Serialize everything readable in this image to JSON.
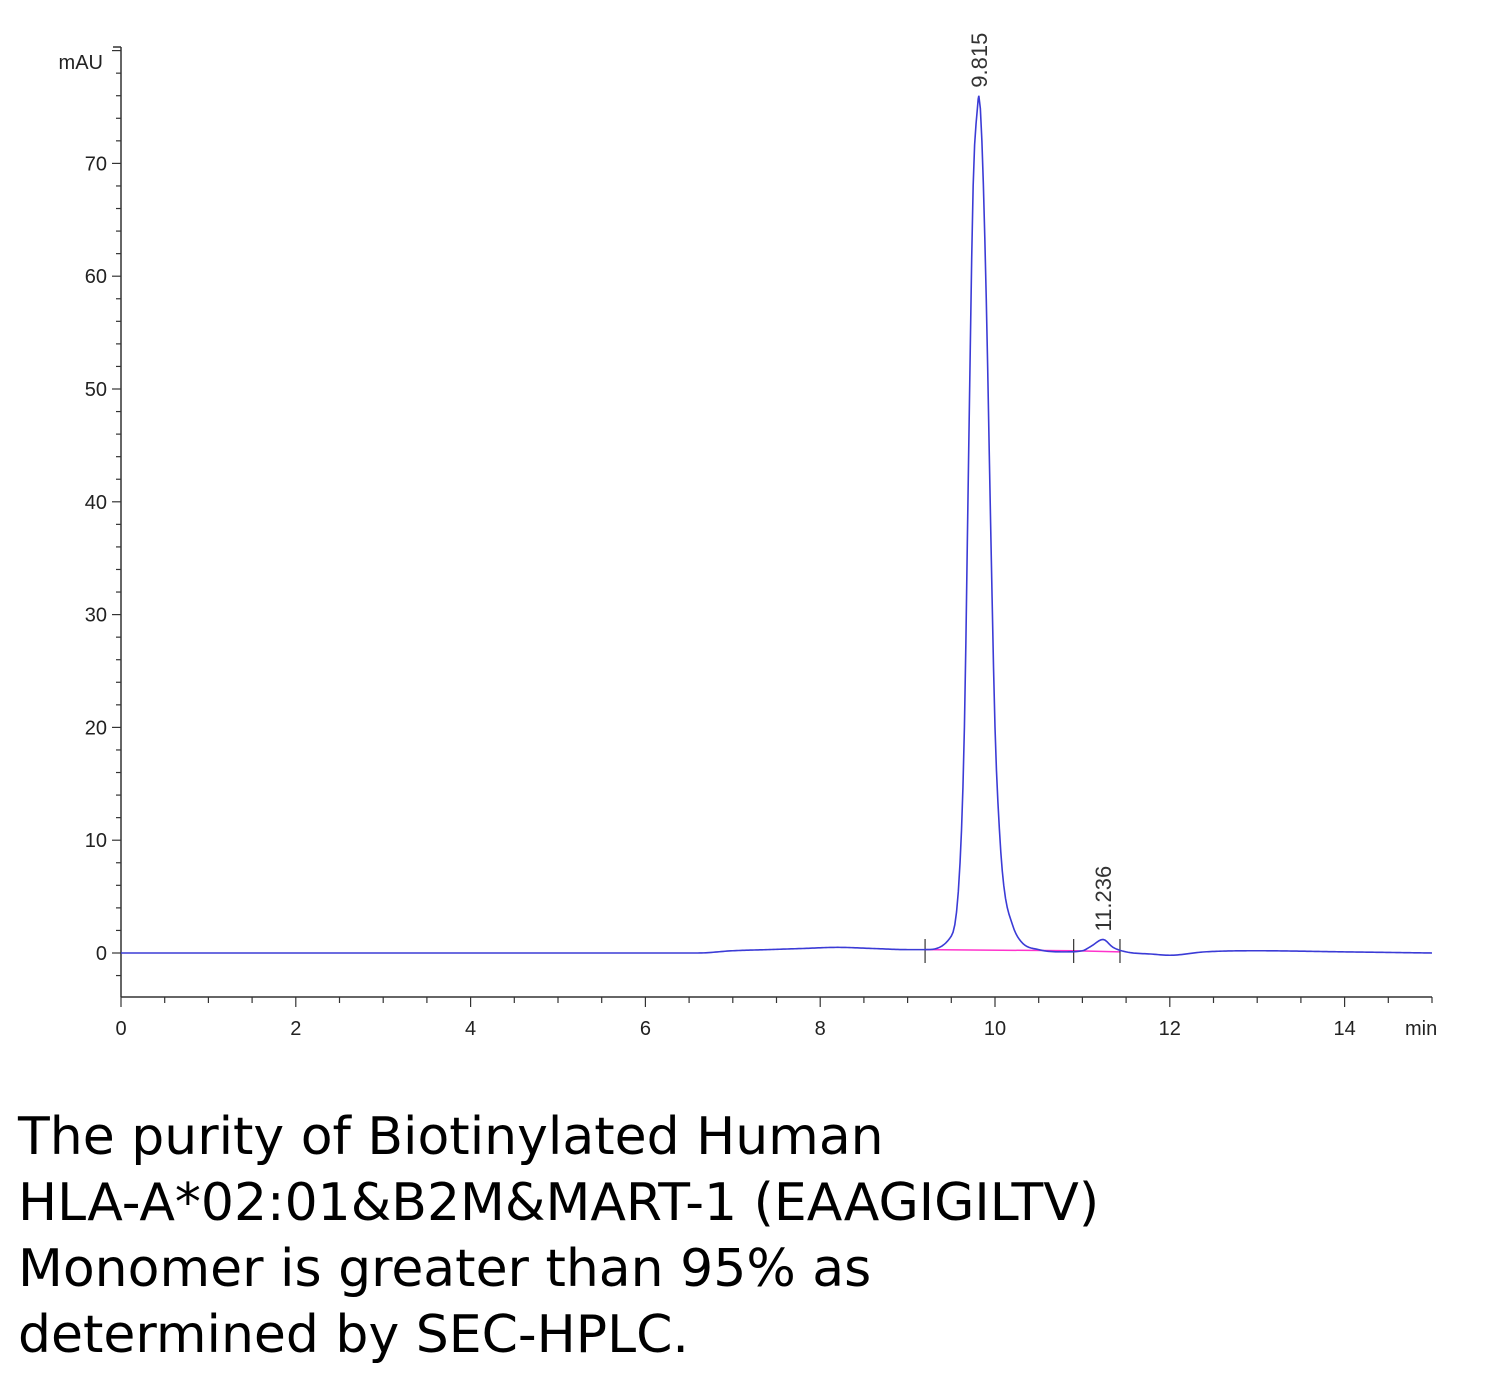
{
  "chart_data": {
    "type": "line",
    "ylabel": "mAU",
    "xlabel": "min",
    "xlim": [
      0,
      15
    ],
    "ylim": [
      -4,
      80
    ],
    "x_ticks": [
      0,
      2,
      4,
      6,
      8,
      10,
      12,
      14
    ],
    "y_ticks": [
      0,
      10,
      20,
      30,
      40,
      50,
      60,
      70
    ],
    "grid": false,
    "series": [
      {
        "color": "#3b3bd6",
        "x": [
          0,
          6.6,
          7.0,
          7.4,
          7.8,
          8.2,
          8.6,
          9.0,
          9.2,
          9.5,
          9.6,
          9.65,
          9.7,
          9.75,
          9.8,
          9.815,
          9.85,
          9.9,
          9.95,
          10.0,
          10.05,
          10.1,
          10.2,
          10.3,
          10.5,
          10.8,
          11.0,
          11.1,
          11.236,
          11.35,
          11.5,
          11.8,
          12.0,
          12.4,
          13.0,
          14.0,
          15.0
        ],
        "y": [
          0,
          0.0,
          0.2,
          0.3,
          0.4,
          0.5,
          0.4,
          0.3,
          0.3,
          1.5,
          8,
          20,
          45,
          68,
          75,
          76,
          72,
          58,
          38,
          20,
          11,
          6,
          2.5,
          1.0,
          0.3,
          0.1,
          0.2,
          0.6,
          1.2,
          0.5,
          0.1,
          -0.1,
          -0.2,
          0.1,
          0.2,
          0.1,
          0.0
        ]
      }
    ],
    "baseline": {
      "color": "#ff33cc",
      "x": [
        9.2,
        10.9,
        11.43
      ],
      "y": [
        0.3,
        0.2,
        0.1
      ]
    },
    "integration_marks": [
      9.2,
      10.9,
      11.43
    ],
    "peaks": [
      {
        "rt": 9.815,
        "label": "9.815",
        "height": 76
      },
      {
        "rt": 11.236,
        "label": "11.236",
        "height": 1.2
      }
    ]
  },
  "caption": {
    "line1": "The purity of Biotinylated Human",
    "line2": "HLA-A*02:01&B2M&MART-1 (EAAGIGILTV)",
    "line3": "Monomer is greater than 95% as",
    "line4": "determined by SEC-HPLC."
  }
}
